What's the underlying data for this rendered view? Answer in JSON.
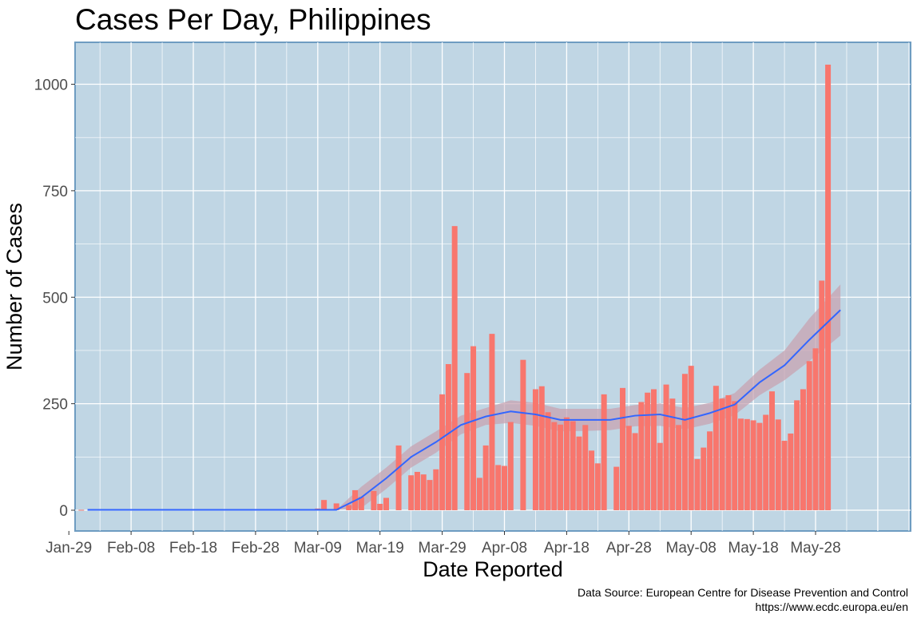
{
  "chart_data": {
    "type": "bar",
    "title": "Cases Per Day, Philippines",
    "xlabel": "Date Reported",
    "ylabel": "Number of Cases",
    "caption": [
      "Data Source: European Centre for Disease Prevention and Control",
      "https://www.ecdc.europa.eu/en"
    ],
    "x_ticks": [
      "Jan-29",
      "Feb-08",
      "Feb-18",
      "Feb-28",
      "Mar-09",
      "Mar-19",
      "Mar-29",
      "Apr-08",
      "Apr-18",
      "Apr-28",
      "May-08",
      "May-18",
      "May-28"
    ],
    "y_ticks": [
      0,
      250,
      500,
      750,
      1000
    ],
    "ylim": [
      -50,
      1100
    ],
    "x_start": "2020-01-30",
    "dates": [
      "2020-01-31",
      "2020-02-03",
      "2020-03-06",
      "2020-03-07",
      "2020-03-08",
      "2020-03-09",
      "2020-03-10",
      "2020-03-11",
      "2020-03-12",
      "2020-03-13",
      "2020-03-14",
      "2020-03-15",
      "2020-03-16",
      "2020-03-17",
      "2020-03-18",
      "2020-03-19",
      "2020-03-20",
      "2020-03-21",
      "2020-03-22",
      "2020-03-23",
      "2020-03-24",
      "2020-03-25",
      "2020-03-26",
      "2020-03-27",
      "2020-03-28",
      "2020-03-29",
      "2020-03-30",
      "2020-03-31",
      "2020-04-01",
      "2020-04-02",
      "2020-04-03",
      "2020-04-04",
      "2020-04-05",
      "2020-04-06",
      "2020-04-07",
      "2020-04-08",
      "2020-04-09",
      "2020-04-10",
      "2020-04-11",
      "2020-04-12",
      "2020-04-13",
      "2020-04-14",
      "2020-04-15",
      "2020-04-16",
      "2020-04-17",
      "2020-04-18",
      "2020-04-19",
      "2020-04-20",
      "2020-04-21",
      "2020-04-22",
      "2020-04-23",
      "2020-04-24",
      "2020-04-25",
      "2020-04-26",
      "2020-04-27",
      "2020-04-28",
      "2020-04-29",
      "2020-04-30",
      "2020-05-01",
      "2020-05-02",
      "2020-05-03",
      "2020-05-04",
      "2020-05-05",
      "2020-05-06",
      "2020-05-07",
      "2020-05-08",
      "2020-05-09",
      "2020-05-10",
      "2020-05-11",
      "2020-05-12",
      "2020-05-13",
      "2020-05-14",
      "2020-05-15",
      "2020-05-16",
      "2020-05-17",
      "2020-05-18",
      "2020-05-19",
      "2020-05-20",
      "2020-05-21",
      "2020-05-22",
      "2020-05-23",
      "2020-05-24",
      "2020-05-25",
      "2020-05-26",
      "2020-05-27",
      "2020-05-28",
      "2020-05-29",
      "2020-05-30",
      "2020-05-31",
      "2020-06-01"
    ],
    "values": [
      1,
      1,
      2,
      2,
      1,
      4,
      24,
      0,
      16,
      0,
      12,
      47,
      31,
      0,
      45,
      15,
      29,
      0,
      152,
      0,
      82,
      90,
      84,
      71,
      96,
      272,
      343,
      667,
      0,
      322,
      385,
      76,
      152,
      414,
      106,
      104,
      207,
      0,
      353,
      0,
      284,
      291,
      230,
      207,
      201,
      218,
      209,
      173,
      200,
      140,
      110,
      272,
      0,
      102,
      287,
      198,
      181,
      254,
      276,
      284,
      158,
      295,
      262,
      200,
      320,
      339,
      120,
      147,
      185,
      292,
      262,
      270,
      256,
      215,
      214,
      211,
      205,
      224,
      279,
      213,
      163,
      180,
      258,
      284,
      350,
      380,
      539,
      1046,
      0,
      0
    ],
    "trend": {
      "x": [
        "2020-02-01",
        "2020-03-12",
        "2020-03-16",
        "2020-03-20",
        "2020-03-24",
        "2020-03-28",
        "2020-04-01",
        "2020-04-05",
        "2020-04-09",
        "2020-04-13",
        "2020-04-17",
        "2020-04-21",
        "2020-04-25",
        "2020-04-29",
        "2020-05-03",
        "2020-05-07",
        "2020-05-11",
        "2020-05-15",
        "2020-05-19",
        "2020-05-23",
        "2020-05-27",
        "2020-06-01"
      ],
      "y": [
        1,
        1,
        30,
        75,
        125,
        160,
        200,
        220,
        232,
        225,
        212,
        212,
        212,
        222,
        225,
        212,
        228,
        248,
        300,
        340,
        400,
        470
      ],
      "lower": [
        1,
        1,
        5,
        50,
        100,
        135,
        178,
        200,
        205,
        198,
        185,
        186,
        188,
        197,
        198,
        190,
        203,
        223,
        270,
        305,
        350,
        410
      ],
      "upper": [
        1,
        1,
        55,
        100,
        150,
        185,
        222,
        240,
        258,
        252,
        238,
        238,
        238,
        247,
        251,
        240,
        252,
        275,
        330,
        375,
        450,
        530
      ]
    },
    "colors": {
      "bar": "#F8766D",
      "trend": "#3366FF",
      "band": "#C8A3B1",
      "panel": "#C0D6E4",
      "panel_border": "#6E9CC1",
      "grid": "#FFFFFF"
    }
  }
}
